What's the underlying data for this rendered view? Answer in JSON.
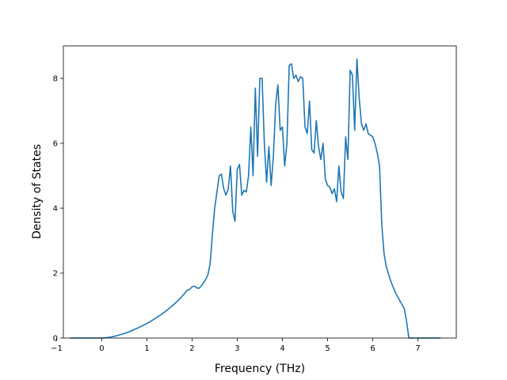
{
  "chart_data": {
    "type": "line",
    "title": "",
    "xlabel": "Frequency (THz)",
    "ylabel": "Density of States",
    "xlim": [
      -0.85,
      7.85
    ],
    "ylim": [
      0,
      9.0
    ],
    "xticks": [
      -1,
      0,
      1,
      2,
      3,
      4,
      5,
      6,
      7
    ],
    "xtick_labels": [
      "−1",
      "0",
      "1",
      "2",
      "3",
      "4",
      "5",
      "6",
      "7"
    ],
    "yticks": [
      0,
      2,
      4,
      6,
      8
    ],
    "ytick_labels": [
      "0",
      "2",
      "4",
      "6",
      "8"
    ],
    "grid": false,
    "legend": "none",
    "line_color": "#1f77b4",
    "series": [
      {
        "x": [
          -0.7,
          -0.5,
          -0.3,
          -0.1,
          0.0,
          0.1,
          0.2,
          0.3,
          0.4,
          0.5,
          0.6,
          0.7,
          0.8,
          0.9,
          1.0,
          1.1,
          1.2,
          1.3,
          1.4,
          1.5,
          1.6,
          1.7,
          1.8,
          1.9,
          1.95,
          2.0,
          2.05,
          2.1,
          2.15,
          2.2,
          2.25,
          2.3,
          2.35,
          2.4,
          2.45,
          2.5,
          2.55,
          2.6,
          2.65,
          2.7,
          2.75,
          2.8,
          2.85,
          2.9,
          2.95,
          3.0,
          3.05,
          3.1,
          3.15,
          3.2,
          3.25,
          3.3,
          3.35,
          3.4,
          3.45,
          3.5,
          3.55,
          3.6,
          3.65,
          3.7,
          3.75,
          3.8,
          3.85,
          3.9,
          3.95,
          4.0,
          4.05,
          4.1,
          4.15,
          4.2,
          4.25,
          4.3,
          4.35,
          4.4,
          4.45,
          4.5,
          4.55,
          4.6,
          4.65,
          4.7,
          4.75,
          4.8,
          4.85,
          4.9,
          4.95,
          5.0,
          5.05,
          5.1,
          5.15,
          5.2,
          5.25,
          5.3,
          5.35,
          5.4,
          5.45,
          5.5,
          5.55,
          5.6,
          5.65,
          5.7,
          5.75,
          5.8,
          5.85,
          5.9,
          5.95,
          6.0,
          6.05,
          6.1,
          6.15,
          6.2,
          6.25,
          6.3,
          6.4,
          6.5,
          6.6,
          6.7,
          6.75,
          6.8,
          6.9,
          7.0,
          7.5
        ],
        "y": [
          0,
          0,
          0,
          0,
          0,
          0.01,
          0.03,
          0.06,
          0.1,
          0.14,
          0.19,
          0.25,
          0.31,
          0.38,
          0.45,
          0.53,
          0.62,
          0.71,
          0.81,
          0.92,
          1.04,
          1.17,
          1.32,
          1.48,
          1.5,
          1.58,
          1.6,
          1.55,
          1.53,
          1.6,
          1.7,
          1.8,
          1.95,
          2.3,
          3.2,
          4.0,
          4.5,
          5.0,
          5.05,
          4.6,
          4.4,
          4.6,
          5.3,
          3.9,
          3.6,
          5.2,
          5.35,
          4.4,
          4.55,
          4.5,
          5.0,
          6.5,
          5.0,
          7.7,
          5.6,
          8.0,
          8.0,
          6.0,
          4.8,
          5.9,
          4.7,
          5.6,
          7.2,
          7.8,
          6.4,
          6.5,
          5.3,
          6.0,
          8.4,
          8.45,
          8.0,
          8.1,
          7.9,
          8.05,
          8.0,
          6.5,
          6.3,
          7.3,
          5.8,
          5.7,
          6.7,
          5.9,
          5.5,
          6.0,
          4.9,
          4.7,
          4.65,
          4.45,
          4.6,
          4.2,
          5.3,
          4.5,
          4.3,
          6.2,
          5.5,
          8.25,
          8.1,
          6.4,
          8.6,
          7.4,
          6.6,
          6.4,
          6.6,
          6.3,
          6.25,
          6.2,
          6.0,
          5.7,
          5.3,
          3.5,
          2.6,
          2.2,
          1.75,
          1.4,
          1.15,
          0.9,
          0.5,
          0.0,
          0,
          0,
          0
        ]
      }
    ]
  }
}
